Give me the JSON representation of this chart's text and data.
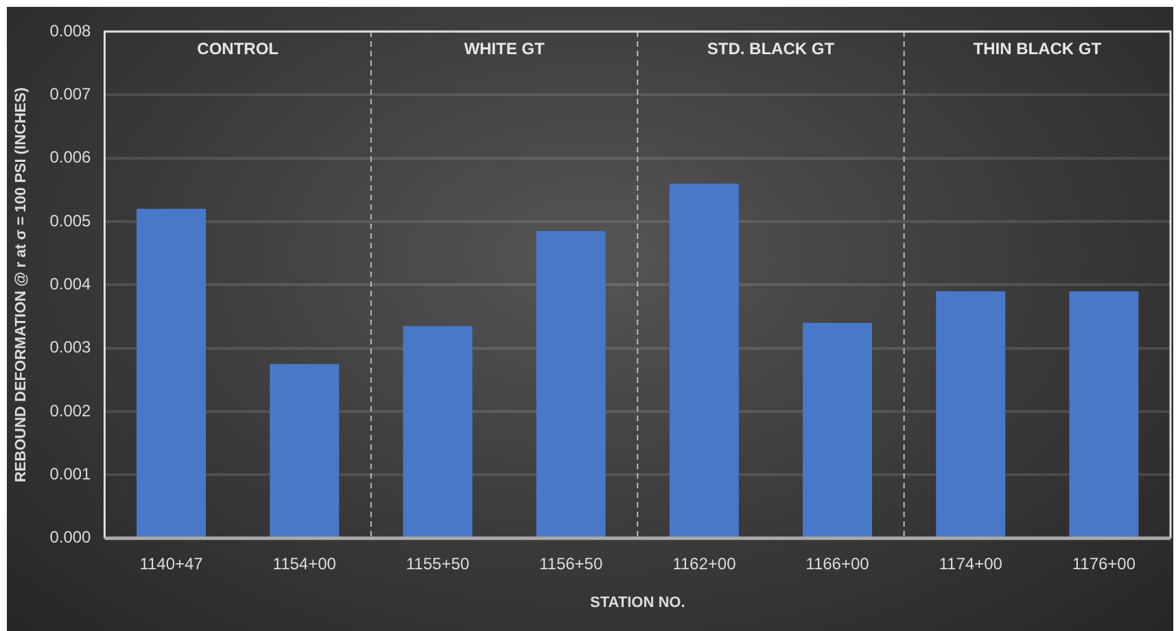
{
  "chart_data": {
    "type": "bar",
    "xlabel": "STATION NO.",
    "ylabel": "REBOUND DEFORMATION @ r at σ = 100 PSI (INCHES)",
    "categories": [
      "1140+47",
      "1154+00",
      "1155+50",
      "1156+50",
      "1162+00",
      "1166+00",
      "1174+00",
      "1176+00"
    ],
    "values": [
      0.0052,
      0.00275,
      0.00335,
      0.00485,
      0.0056,
      0.0034,
      0.0039,
      0.0039
    ],
    "color": "#4a78c8",
    "ylim": [
      0,
      0.008
    ],
    "yticks": [
      {
        "value": 0,
        "label": "0.000"
      },
      {
        "value": 0.001,
        "label": "0.001"
      },
      {
        "value": 0.002,
        "label": "0.002"
      },
      {
        "value": 0.003,
        "label": "0.003"
      },
      {
        "value": 0.004,
        "label": "0.004"
      },
      {
        "value": 0.005,
        "label": "0.005"
      },
      {
        "value": 0.006,
        "label": "0.006"
      },
      {
        "value": 0.007,
        "label": "0.007"
      },
      {
        "value": 0.008,
        "label": "0.008"
      }
    ],
    "grid": "y",
    "annotations": [
      "CONTROL",
      "WHITE GT",
      "STD. BLACK GT",
      "THIN BLACK GT"
    ]
  }
}
